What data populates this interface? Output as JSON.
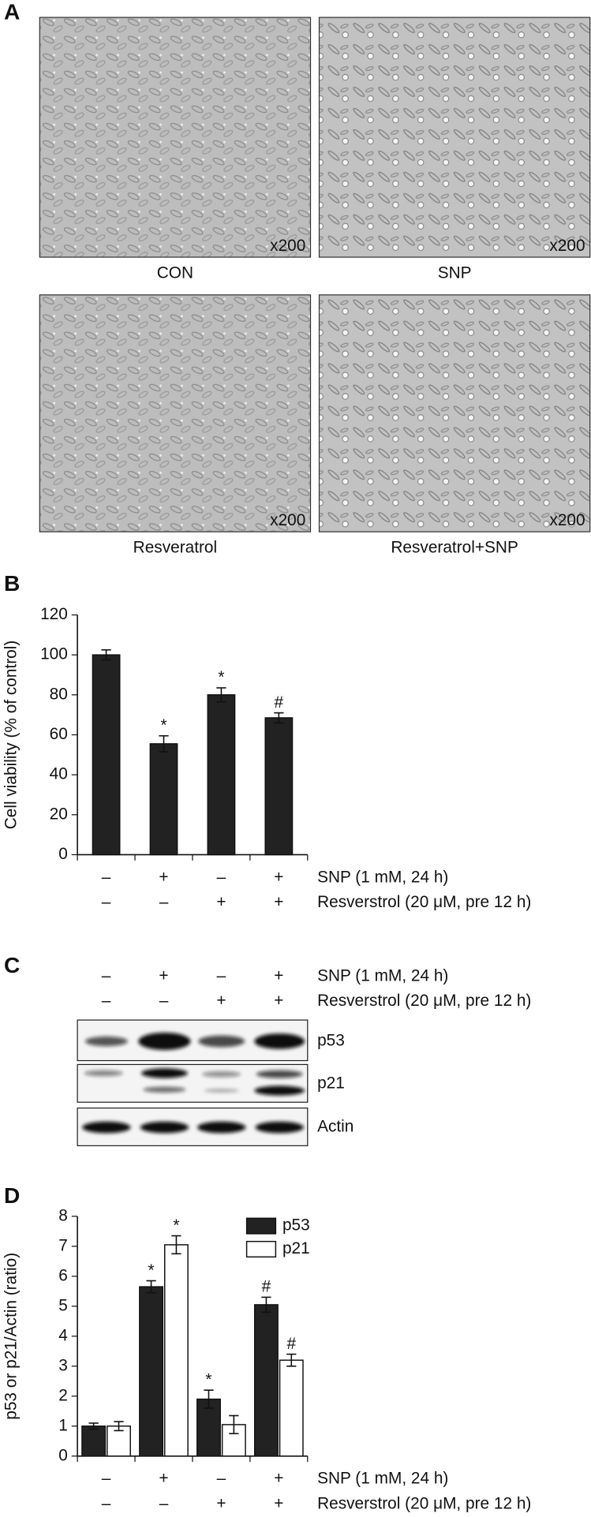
{
  "panel_a": {
    "label": "A",
    "images": [
      {
        "caption": "CON",
        "magnification": "x200"
      },
      {
        "caption": "SNP",
        "magnification": "x200"
      },
      {
        "caption": "Resveratrol",
        "magnification": "x200"
      },
      {
        "caption": "Resveratrol+SNP",
        "magnification": "x200"
      }
    ]
  },
  "chart_data": [
    {
      "panel": "B",
      "type": "bar",
      "y_label": "Cell viability (% of control)",
      "values": [
        100,
        55.5,
        80,
        68.5
      ],
      "errors": [
        2.5,
        4,
        3.5,
        2.5
      ],
      "annotations": [
        null,
        "*",
        "*",
        "#"
      ],
      "color": "#222222",
      "ylim": [
        0,
        120
      ],
      "yticks": [
        0,
        20,
        40,
        60,
        80,
        100,
        120
      ],
      "treatments": [
        {
          "name": "SNP (1 mM, 24 h)",
          "signs": [
            "–",
            "+",
            "–",
            "+"
          ]
        },
        {
          "name": "Resverstrol (20 μM, pre 12 h)",
          "signs": [
            "–",
            "–",
            "+",
            "+"
          ]
        }
      ]
    },
    {
      "panel": "D",
      "type": "grouped_bar",
      "y_label": "p53 or p21/Actin (ratio)",
      "series": [
        {
          "name": "p53",
          "color": "#222222",
          "values": [
            1.0,
            5.65,
            1.9,
            5.05
          ],
          "errors": [
            0.1,
            0.2,
            0.3,
            0.25
          ],
          "annotations": [
            null,
            "*",
            "*",
            "#"
          ]
        },
        {
          "name": "p21",
          "color": "#ffffff",
          "values": [
            1.0,
            7.05,
            1.05,
            3.2
          ],
          "errors": [
            0.15,
            0.3,
            0.3,
            0.2
          ],
          "annotations": [
            null,
            "*",
            null,
            "#"
          ]
        }
      ],
      "legend": "top",
      "ylim": [
        0,
        8
      ],
      "yticks": [
        0,
        1,
        2,
        3,
        4,
        5,
        6,
        7,
        8
      ],
      "treatments": [
        {
          "name": "SNP (1 mM, 24 h)",
          "signs": [
            "–",
            "+",
            "–",
            "+"
          ]
        },
        {
          "name": "Resverstrol (20 μM, pre 12 h)",
          "signs": [
            "–",
            "–",
            "+",
            "+"
          ]
        }
      ]
    }
  ],
  "panel_c": {
    "label": "C",
    "treatments": [
      {
        "name": "SNP (1 mM, 24 h)",
        "signs": [
          "–",
          "+",
          "–",
          "+"
        ]
      },
      {
        "name": "Resverstrol (20 μM, pre 12 h)",
        "signs": [
          "–",
          "–",
          "+",
          "+"
        ]
      }
    ],
    "blots": [
      "p53",
      "p21",
      "Actin"
    ]
  }
}
